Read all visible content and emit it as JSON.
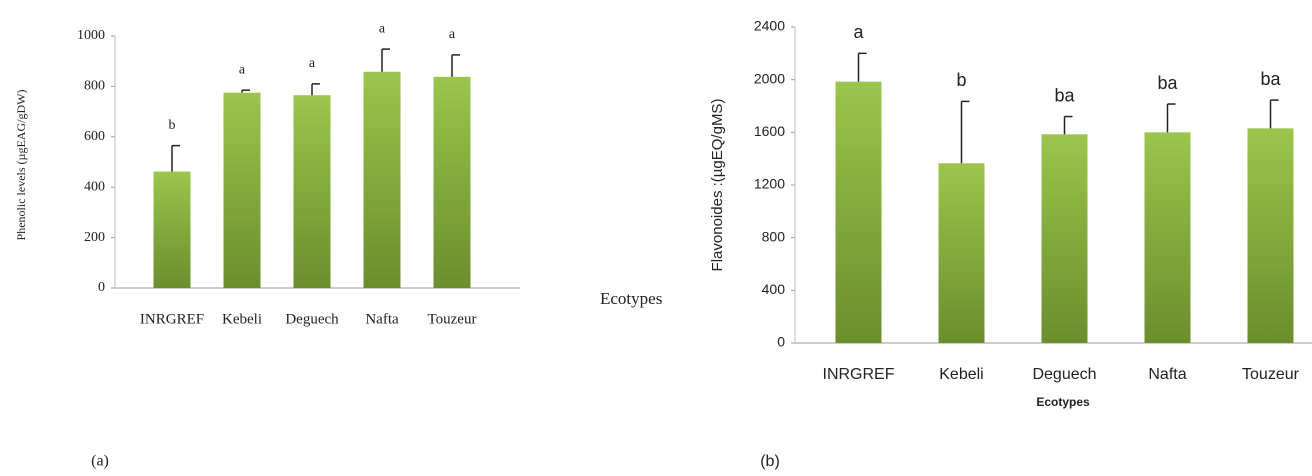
{
  "chart_data": [
    {
      "type": "bar",
      "y_label": "Phenolic levels (µgEAG/gDW)",
      "x_label": "Ecotypes",
      "caption": "(a)",
      "categories": [
        "INRGREF",
        "Kebeli",
        "Deguech",
        "Nafta",
        "Touzeur"
      ],
      "values": [
        462,
        775,
        765,
        858,
        838
      ],
      "errors": [
        103,
        10,
        45,
        90,
        87
      ],
      "annotations": [
        "b",
        "a",
        "a",
        "a",
        "a"
      ],
      "color": "#9bc54c",
      "ylim": [
        0,
        1000
      ],
      "yticks": [
        0,
        200,
        400,
        600,
        800,
        1000
      ],
      "grid": false
    },
    {
      "type": "bar",
      "y_label": "Flavonoides :(µgEQ/gMS)",
      "x_label": "Ecotypes",
      "caption": "(b)",
      "categories": [
        "INRGREF",
        "Kebeli",
        "Deguech",
        "Nafta",
        "Touzeur"
      ],
      "values": [
        1985,
        1365,
        1585,
        1600,
        1630
      ],
      "errors": [
        215,
        470,
        135,
        215,
        215
      ],
      "annotations": [
        "a",
        "b",
        "ba",
        "ba",
        "ba"
      ],
      "color": "#9bc54c",
      "ylim": [
        0,
        2400
      ],
      "yticks": [
        0,
        400,
        800,
        1200,
        1600,
        2000,
        2400
      ],
      "grid": false
    }
  ]
}
